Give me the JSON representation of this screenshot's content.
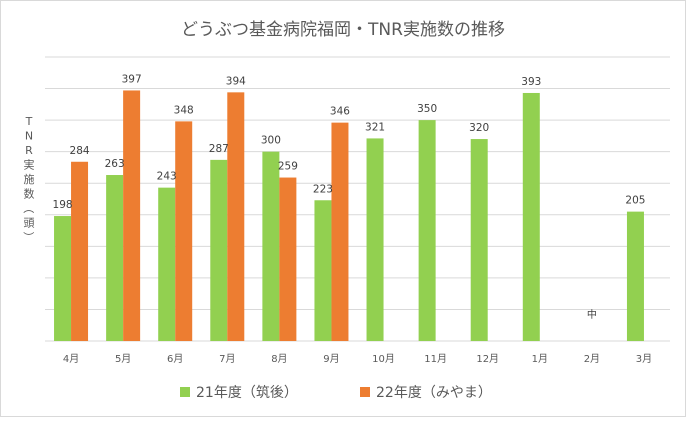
{
  "chart_data": {
    "type": "bar",
    "title": "どうぶつ基金病院福岡・TNR実施数の推移",
    "ylabel": "TNR実施数（頭）",
    "xlabel": "",
    "categories": [
      "4月",
      "5月",
      "6月",
      "7月",
      "8月",
      "9月",
      "10月",
      "11月",
      "12月",
      "1月",
      "2月",
      "3月"
    ],
    "ylim": [
      0,
      450
    ],
    "grid": true,
    "legend_position": "bottom",
    "series": [
      {
        "name": "21年度（筑後）",
        "color": "#92D050",
        "values": [
          198,
          263,
          243,
          287,
          300,
          223,
          321,
          350,
          320,
          393,
          null,
          205
        ]
      },
      {
        "name": "22年度（みやま）",
        "color": "#ED7D31",
        "values": [
          284,
          397,
          348,
          394,
          259,
          346,
          null,
          null,
          null,
          null,
          null,
          null
        ]
      }
    ],
    "annotations": [
      {
        "category": "2月",
        "text": "中"
      }
    ]
  }
}
